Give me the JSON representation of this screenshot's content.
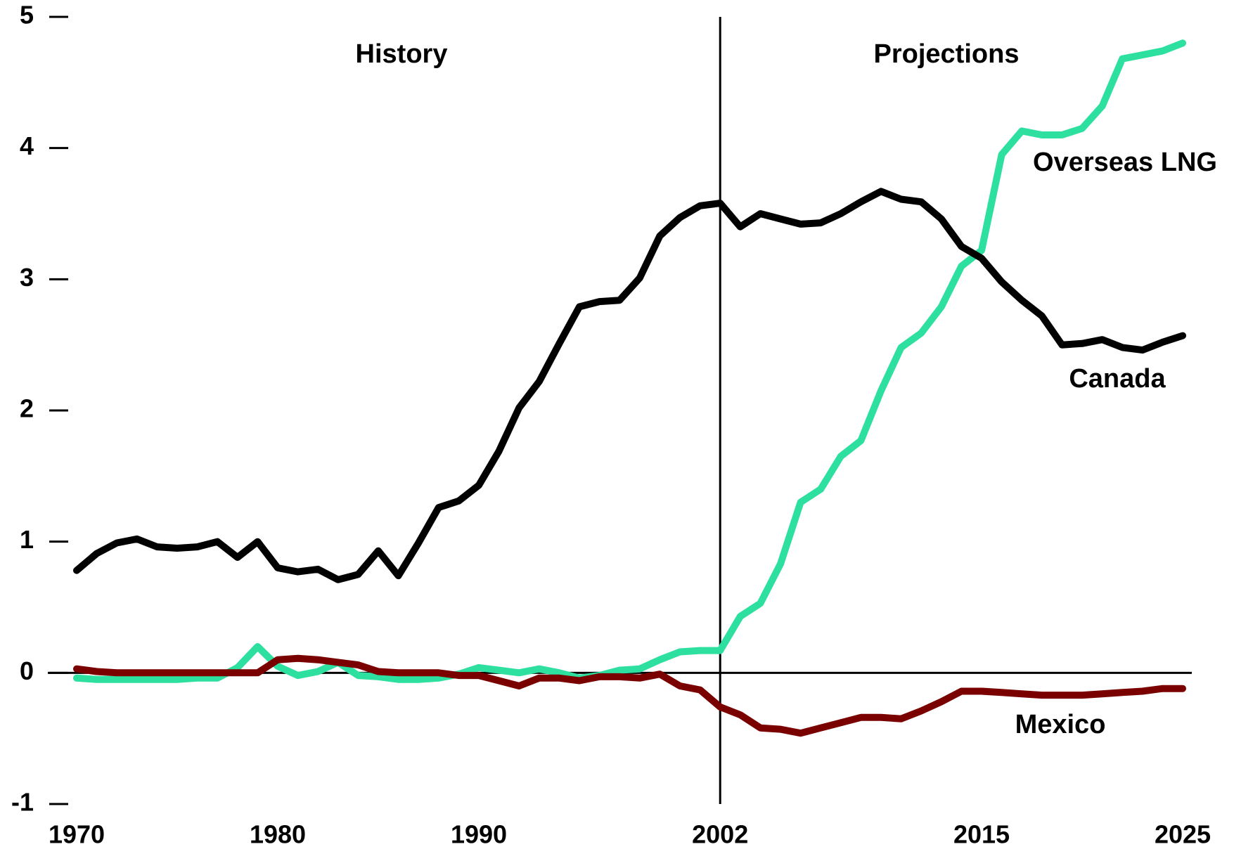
{
  "chart_data": {
    "type": "line",
    "annotations": [
      "History",
      "Projections"
    ],
    "x": [
      1970,
      1971,
      1972,
      1973,
      1974,
      1975,
      1976,
      1977,
      1978,
      1979,
      1980,
      1981,
      1982,
      1983,
      1984,
      1985,
      1986,
      1987,
      1988,
      1989,
      1990,
      1991,
      1992,
      1993,
      1994,
      1995,
      1996,
      1997,
      1998,
      1999,
      2000,
      2001,
      2002,
      2003,
      2004,
      2005,
      2006,
      2007,
      2008,
      2009,
      2010,
      2011,
      2012,
      2013,
      2014,
      2015,
      2016,
      2017,
      2018,
      2019,
      2020,
      2021,
      2022,
      2023,
      2024,
      2025
    ],
    "series": [
      {
        "name": "Overseas LNG",
        "color": "#2ee0a0",
        "values": [
          -0.04,
          -0.05,
          -0.05,
          -0.05,
          -0.05,
          -0.05,
          -0.04,
          -0.04,
          0.04,
          0.2,
          0.05,
          -0.02,
          0.01,
          0.08,
          -0.02,
          -0.03,
          -0.05,
          -0.05,
          -0.04,
          -0.01,
          0.04,
          0.02,
          0.0,
          0.03,
          0.0,
          -0.04,
          -0.02,
          0.02,
          0.03,
          0.1,
          0.16,
          0.17,
          0.17,
          0.43,
          0.53,
          0.83,
          1.3,
          1.4,
          1.65,
          1.77,
          2.15,
          2.48,
          2.59,
          2.79,
          3.1,
          3.22,
          3.95,
          4.13,
          4.1,
          4.1,
          4.15,
          4.32,
          4.68,
          4.71,
          4.74,
          4.8
        ]
      },
      {
        "name": "Canada",
        "color": "#000000",
        "values": [
          0.78,
          0.91,
          0.99,
          1.02,
          0.96,
          0.95,
          0.96,
          1.0,
          0.88,
          1.0,
          0.8,
          0.77,
          0.79,
          0.71,
          0.75,
          0.93,
          0.74,
          0.99,
          1.26,
          1.31,
          1.43,
          1.69,
          2.02,
          2.22,
          2.51,
          2.79,
          2.83,
          2.84,
          3.01,
          3.33,
          3.47,
          3.56,
          3.58,
          3.4,
          3.5,
          3.46,
          3.42,
          3.43,
          3.5,
          3.59,
          3.67,
          3.61,
          3.59,
          3.46,
          3.25,
          3.16,
          2.98,
          2.84,
          2.72,
          2.5,
          2.51,
          2.54,
          2.48,
          2.46,
          2.52,
          2.57
        ]
      },
      {
        "name": "Mexico",
        "color": "#7a0000",
        "values": [
          0.03,
          0.01,
          0.0,
          0.0,
          0.0,
          0.0,
          0.0,
          0.0,
          0.0,
          0.0,
          0.1,
          0.11,
          0.1,
          0.08,
          0.06,
          0.01,
          0.0,
          0.0,
          0.0,
          -0.02,
          -0.02,
          -0.06,
          -0.1,
          -0.04,
          -0.04,
          -0.06,
          -0.03,
          -0.03,
          -0.04,
          -0.01,
          -0.1,
          -0.13,
          -0.26,
          -0.32,
          -0.42,
          -0.43,
          -0.46,
          -0.42,
          -0.38,
          -0.34,
          -0.34,
          -0.35,
          -0.29,
          -0.22,
          -0.14,
          -0.14,
          -0.15,
          -0.16,
          -0.17,
          -0.17,
          -0.17,
          -0.16,
          -0.15,
          -0.14,
          -0.12,
          -0.12
        ]
      }
    ],
    "divider_x": 2002,
    "xlim": [
      1970,
      2025
    ],
    "xticks": [
      1970,
      1980,
      1990,
      2002,
      2015,
      2025
    ],
    "ylim": [
      -1,
      5
    ],
    "yticks": [
      -1,
      0,
      1,
      2,
      3,
      4,
      5
    ],
    "grid": false
  }
}
